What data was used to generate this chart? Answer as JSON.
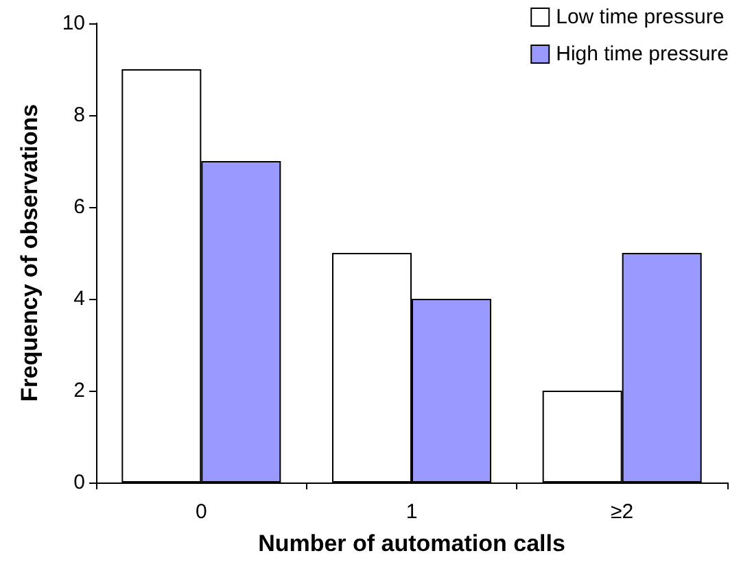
{
  "chart_data": {
    "type": "bar",
    "xlabel": "Number of automation calls",
    "ylabel": "Frequency of observations",
    "categories": [
      "0",
      "1",
      "≥2"
    ],
    "series": [
      {
        "name": "Low time pressure",
        "color": "#ffffff",
        "values": [
          9,
          5,
          2
        ]
      },
      {
        "name": "High time pressure",
        "color": "#9999ff",
        "values": [
          7,
          4,
          5
        ]
      }
    ],
    "ylim": [
      0,
      10
    ],
    "yticks": [
      0,
      2,
      4,
      6,
      8,
      10
    ],
    "grid": false,
    "legend": "top right"
  }
}
